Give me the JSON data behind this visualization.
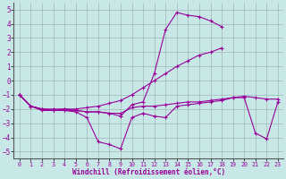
{
  "background_color": "#c8e8e8",
  "grid_color": "#a0b8b8",
  "line_color": "#990099",
  "xlabel": "Windchill (Refroidissement éolien,°C)",
  "xlim": [
    -0.5,
    23.5
  ],
  "ylim": [
    -5.5,
    5.5
  ],
  "yticks": [
    -5,
    -4,
    -3,
    -2,
    -1,
    0,
    1,
    2,
    3,
    4,
    5
  ],
  "xticks": [
    0,
    1,
    2,
    3,
    4,
    5,
    6,
    7,
    8,
    9,
    10,
    11,
    12,
    13,
    14,
    15,
    16,
    17,
    18,
    19,
    20,
    21,
    22,
    23
  ],
  "series": [
    {
      "x": [
        0,
        1,
        2,
        3,
        4,
        5,
        6,
        7,
        8,
        9,
        10,
        11,
        12,
        13,
        14,
        15,
        16,
        17,
        18
      ],
      "y": [
        -1.0,
        -1.8,
        -2.0,
        -2.1,
        -2.1,
        -2.1,
        -2.2,
        -2.2,
        -2.3,
        -2.5,
        -1.7,
        -1.5,
        0.5,
        3.6,
        4.8,
        4.6,
        4.5,
        4.2,
        3.8
      ]
    },
    {
      "x": [
        0,
        1,
        2,
        3,
        4,
        5,
        6,
        7,
        8,
        9,
        10,
        11,
        12,
        13,
        14,
        15,
        16,
        17,
        18
      ],
      "y": [
        -1.0,
        -1.8,
        -2.0,
        -2.0,
        -2.0,
        -2.0,
        -1.9,
        -1.8,
        -1.6,
        -1.4,
        -1.0,
        -0.5,
        0.0,
        0.5,
        1.0,
        1.4,
        1.8,
        2.0,
        2.3
      ]
    },
    {
      "x": [
        0,
        1,
        2,
        3,
        4,
        5,
        6,
        7,
        8,
        9,
        10,
        11,
        12,
        13,
        14,
        15,
        16,
        17,
        18,
        19,
        20,
        21,
        22,
        23
      ],
      "y": [
        -1.0,
        -1.8,
        -2.1,
        -2.1,
        -2.1,
        -2.2,
        -2.6,
        -4.3,
        -4.5,
        -4.8,
        -2.6,
        -2.3,
        -2.5,
        -2.6,
        -1.8,
        -1.7,
        -1.6,
        -1.5,
        -1.4,
        -1.2,
        -1.2,
        -3.7,
        -4.1,
        -1.5
      ]
    },
    {
      "x": [
        0,
        1,
        2,
        3,
        4,
        5,
        6,
        7,
        8,
        9,
        10,
        11,
        12,
        13,
        14,
        15,
        16,
        17,
        18,
        19,
        20,
        21,
        22,
        23
      ],
      "y": [
        -1.0,
        -1.8,
        -2.0,
        -2.1,
        -2.0,
        -2.1,
        -2.2,
        -2.2,
        -2.3,
        -2.3,
        -1.9,
        -1.8,
        -1.8,
        -1.7,
        -1.6,
        -1.5,
        -1.5,
        -1.4,
        -1.3,
        -1.2,
        -1.1,
        -1.2,
        -1.3,
        -1.3
      ]
    }
  ]
}
